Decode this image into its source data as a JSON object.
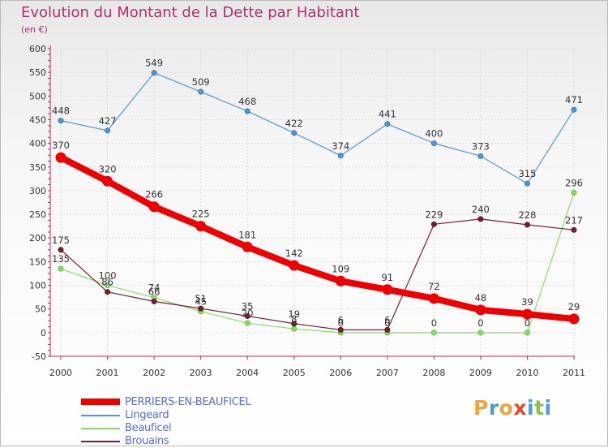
{
  "chart_title": "Evolution du Montant de la Dette par Habitant",
  "chart_subtitle": "(en €)",
  "logo": {
    "text": "Proxiti",
    "letters": [
      "P",
      "r",
      "o",
      "x",
      "i",
      "t",
      "i"
    ],
    "colors": [
      "#f0a33a",
      "#4a9cd8",
      "#f0a33a",
      "#e04b2b",
      "#4a9cd8",
      "#8bc34a",
      "#4a9cd8"
    ]
  },
  "chart_data": {
    "type": "line",
    "title": "Evolution du Montant de la Dette par Habitant",
    "subtitle": "(en €)",
    "xlabel": "",
    "ylabel": "",
    "x": [
      2000,
      2001,
      2002,
      2003,
      2004,
      2005,
      2006,
      2007,
      2008,
      2009,
      2010,
      2011
    ],
    "ylim": [
      -50,
      600
    ],
    "yticks": [
      -50,
      0,
      50,
      100,
      150,
      200,
      250,
      300,
      350,
      400,
      450,
      500,
      550,
      600
    ],
    "grid": true,
    "legend_position": "bottom-left",
    "series": [
      {
        "name": "PERRIERS-EN-BEAUFICEL",
        "color": "#ee0000",
        "values": [
          370,
          320,
          266,
          225,
          181,
          142,
          109,
          91,
          72,
          48,
          39,
          29
        ],
        "labels": [
          "370",
          "320",
          "266",
          "225",
          "181",
          "142",
          "109",
          "91",
          "72",
          "48",
          "39",
          "29"
        ]
      },
      {
        "name": "Lingeard",
        "color": "#5599cc",
        "values": [
          448,
          427,
          549,
          509,
          468,
          422,
          374,
          441,
          400,
          373,
          315,
          471
        ],
        "labels": [
          "448",
          "427",
          "549",
          "509",
          "468",
          "422",
          "374",
          "441",
          "400",
          "373",
          "315",
          "471"
        ]
      },
      {
        "name": "Beauficel",
        "color": "#88dd66",
        "values": [
          135,
          100,
          74,
          45,
          20,
          8,
          0,
          0,
          0,
          0,
          0,
          296
        ],
        "labels": [
          "135",
          "100",
          "74",
          "45",
          "20",
          "8",
          "0",
          "0",
          "0",
          "0",
          "0",
          "296"
        ]
      },
      {
        "name": "Brouains",
        "color": "#772233",
        "values": [
          175,
          86,
          66,
          51,
          35,
          19,
          6,
          6,
          229,
          240,
          228,
          217
        ],
        "labels": [
          "175",
          "86",
          "66",
          "51",
          "35",
          "19",
          "6",
          "6",
          "229",
          "240",
          "228",
          "217"
        ]
      }
    ]
  }
}
